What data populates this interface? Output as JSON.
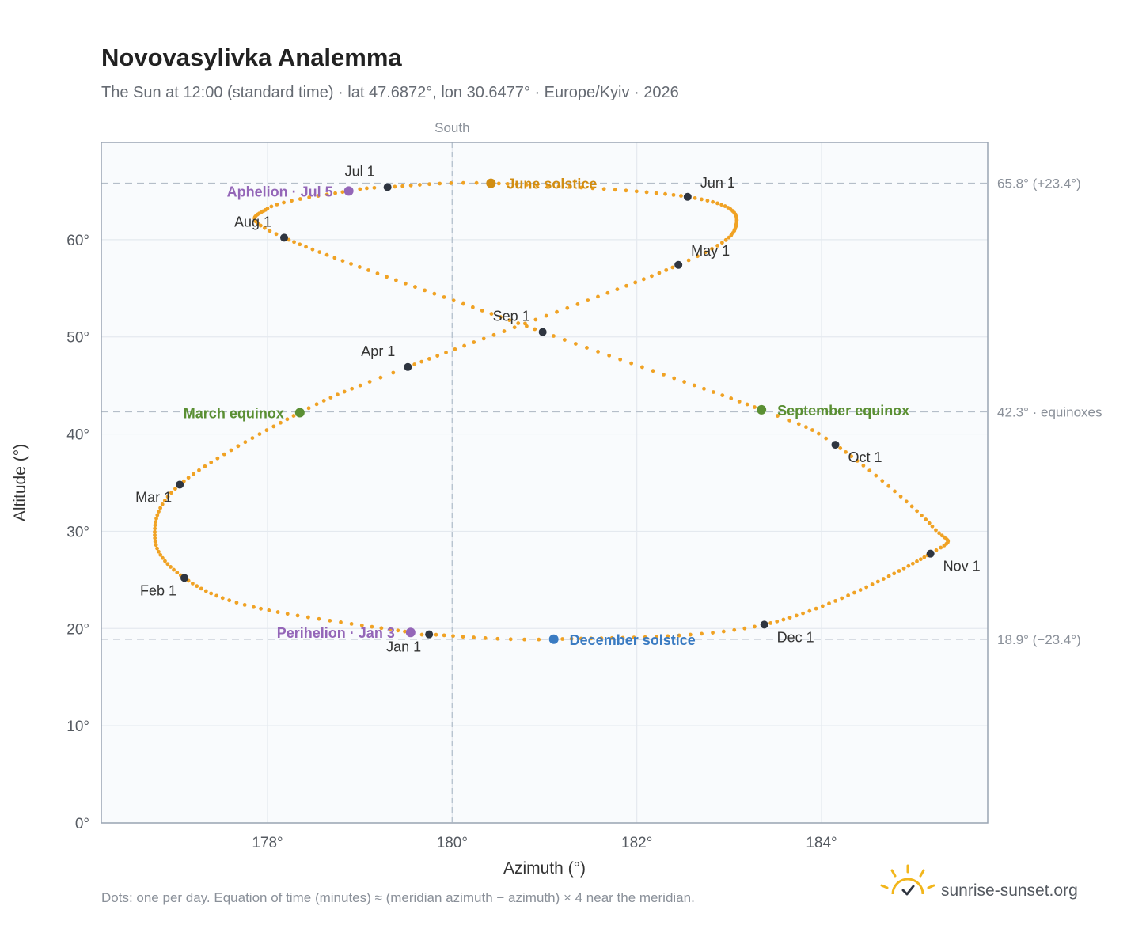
{
  "header": {
    "title": "Novovasylivka Analemma",
    "subtitle": "The Sun at 12:00 (standard time) · lat 47.6872°, lon 30.6477° · Europe/Kyiv · 2026"
  },
  "footer": {
    "note": "Dots: one per day. Equation of time (minutes) ≈ (meridian azimuth − azimuth) × 4 near the meridian.",
    "brand": "sunrise-sunset.org"
  },
  "colors": {
    "path": "#f0a224",
    "month_dot": "#2f3540",
    "june_solstice": "#d18d12",
    "december_solstice": "#3a7bc2",
    "equinox": "#5a8f33",
    "apsis": "#9466b8"
  },
  "chart_data": {
    "type": "scatter",
    "title": "Novovasylivka Analemma",
    "xlabel": "Azimuth (°)",
    "ylabel": "Altitude (°)",
    "xlim": [
      176.2,
      185.8
    ],
    "ylim": [
      0,
      70
    ],
    "x_ticks": [
      {
        "value": 178,
        "label": "178°"
      },
      {
        "value": 180,
        "label": "180°"
      },
      {
        "value": 182,
        "label": "182°"
      },
      {
        "value": 184,
        "label": "184°"
      }
    ],
    "y_ticks": [
      {
        "value": 0,
        "label": "0°"
      },
      {
        "value": 10,
        "label": "10°"
      },
      {
        "value": 20,
        "label": "20°"
      },
      {
        "value": 30,
        "label": "30°"
      },
      {
        "value": 40,
        "label": "40°"
      },
      {
        "value": 50,
        "label": "50°"
      },
      {
        "value": 60,
        "label": "60°"
      }
    ],
    "grid": true,
    "meridian": {
      "azimuth": 180,
      "label": "South"
    },
    "reference_lines": [
      {
        "altitude": 65.8,
        "label": "65.8° (+23.4°)"
      },
      {
        "altitude": 42.3,
        "label": "42.3° · equinoxes"
      },
      {
        "altitude": 18.9,
        "label": "18.9° (−23.4°)"
      }
    ],
    "path_key_points": [
      {
        "day": 1,
        "azimuth": 179.75,
        "altitude": 19.4
      },
      {
        "day": 3,
        "azimuth": 179.55,
        "altitude": 19.6
      },
      {
        "day": 20,
        "azimuth": 177.85,
        "altitude": 22.2
      },
      {
        "day": 32,
        "azimuth": 177.1,
        "altitude": 25.2
      },
      {
        "day": 45,
        "azimuth": 176.78,
        "altitude": 29.3
      },
      {
        "day": 60,
        "azimuth": 177.05,
        "altitude": 34.8
      },
      {
        "day": 79,
        "azimuth": 178.35,
        "altitude": 42.2
      },
      {
        "day": 91,
        "azimuth": 179.52,
        "altitude": 46.9
      },
      {
        "day": 121,
        "azimuth": 182.45,
        "altitude": 57.4
      },
      {
        "day": 136,
        "azimuth": 183.08,
        "altitude": 61.8
      },
      {
        "day": 152,
        "azimuth": 182.55,
        "altitude": 64.4
      },
      {
        "day": 172,
        "azimuth": 180.42,
        "altitude": 65.8
      },
      {
        "day": 182,
        "azimuth": 179.3,
        "altitude": 65.4
      },
      {
        "day": 186,
        "azimuth": 178.88,
        "altitude": 65.0
      },
      {
        "day": 197,
        "azimuth": 178.0,
        "altitude": 63.2
      },
      {
        "day": 213,
        "azimuth": 178.18,
        "altitude": 60.2
      },
      {
        "day": 244,
        "azimuth": 180.98,
        "altitude": 50.5
      },
      {
        "day": 266,
        "azimuth": 183.35,
        "altitude": 42.5
      },
      {
        "day": 274,
        "azimuth": 184.15,
        "altitude": 38.9
      },
      {
        "day": 292,
        "azimuth": 185.2,
        "altitude": 30.5
      },
      {
        "day": 305,
        "azimuth": 185.18,
        "altitude": 27.7
      },
      {
        "day": 335,
        "azimuth": 183.38,
        "altitude": 20.4
      },
      {
        "day": 355,
        "azimuth": 181.1,
        "altitude": 18.9
      },
      {
        "day": 366,
        "azimuth": 179.75,
        "altitude": 19.4
      }
    ],
    "months": [
      {
        "label": "Jan 1",
        "azimuth": 179.75,
        "altitude": 19.4,
        "anchor": "below-left"
      },
      {
        "label": "Feb 1",
        "azimuth": 177.1,
        "altitude": 25.2,
        "anchor": "below-left"
      },
      {
        "label": "Mar 1",
        "azimuth": 177.05,
        "altitude": 34.8,
        "anchor": "below-left"
      },
      {
        "label": "Apr 1",
        "azimuth": 179.52,
        "altitude": 46.9,
        "anchor": "above-left"
      },
      {
        "label": "May 1",
        "azimuth": 182.45,
        "altitude": 57.4,
        "anchor": "above-right"
      },
      {
        "label": "Jun 1",
        "azimuth": 182.55,
        "altitude": 64.4,
        "anchor": "above-right"
      },
      {
        "label": "Jul 1",
        "azimuth": 179.3,
        "altitude": 65.4,
        "anchor": "above-left"
      },
      {
        "label": "Aug 1",
        "azimuth": 178.18,
        "altitude": 60.2,
        "anchor": "above-left"
      },
      {
        "label": "Sep 1",
        "azimuth": 180.98,
        "altitude": 50.5,
        "anchor": "above-left"
      },
      {
        "label": "Oct 1",
        "azimuth": 184.15,
        "altitude": 38.9,
        "anchor": "below-right"
      },
      {
        "label": "Nov 1",
        "azimuth": 185.18,
        "altitude": 27.7,
        "anchor": "below-right"
      },
      {
        "label": "Dec 1",
        "azimuth": 183.38,
        "altitude": 20.4,
        "anchor": "below-right"
      }
    ],
    "events": [
      {
        "label": "June solstice",
        "azimuth": 180.42,
        "altitude": 65.8,
        "color": "#d18d12",
        "side": "right"
      },
      {
        "label": "December solstice",
        "azimuth": 181.1,
        "altitude": 18.9,
        "color": "#3a7bc2",
        "side": "right"
      },
      {
        "label": "March equinox",
        "azimuth": 178.35,
        "altitude": 42.2,
        "color": "#5a8f33",
        "side": "left"
      },
      {
        "label": "September equinox",
        "azimuth": 183.35,
        "altitude": 42.5,
        "color": "#5a8f33",
        "side": "right"
      },
      {
        "label": "Aphelion · Jul 5",
        "azimuth": 178.88,
        "altitude": 65.0,
        "color": "#9466b8",
        "side": "left"
      },
      {
        "label": "Perihelion · Jan 3",
        "azimuth": 179.55,
        "altitude": 19.6,
        "color": "#9466b8",
        "side": "left"
      }
    ]
  }
}
